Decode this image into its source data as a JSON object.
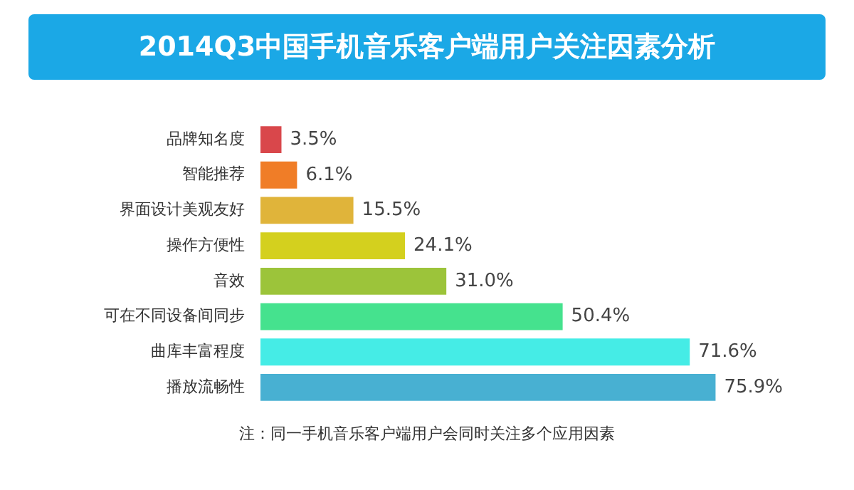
{
  "chart_data": {
    "type": "bar",
    "orientation": "horizontal",
    "title": "2014Q3中国手机音乐客户端用户关注因素分析",
    "categories": [
      "品牌知名度",
      "智能推荐",
      "界面设计美观友好",
      "操作方便性",
      "音效",
      "可在不同设备间同步",
      "曲库丰富程度",
      "播放流畅性"
    ],
    "values": [
      3.5,
      6.1,
      15.5,
      24.1,
      31.0,
      50.4,
      71.6,
      75.9
    ],
    "colors": [
      "#d9474b",
      "#f07d27",
      "#e0b43a",
      "#d4d01e",
      "#9cc43a",
      "#45e28e",
      "#45ece6",
      "#48b0d2"
    ],
    "tick_labels": "y",
    "value_labels": [
      "3.5%",
      "6.1%",
      "15.5%",
      "24.1%",
      "31.0%",
      "50.4%",
      "71.6%",
      "75.9%"
    ],
    "annotations": [
      "注：同一手机音乐客户端用户会同时关注多个应用因素"
    ]
  }
}
